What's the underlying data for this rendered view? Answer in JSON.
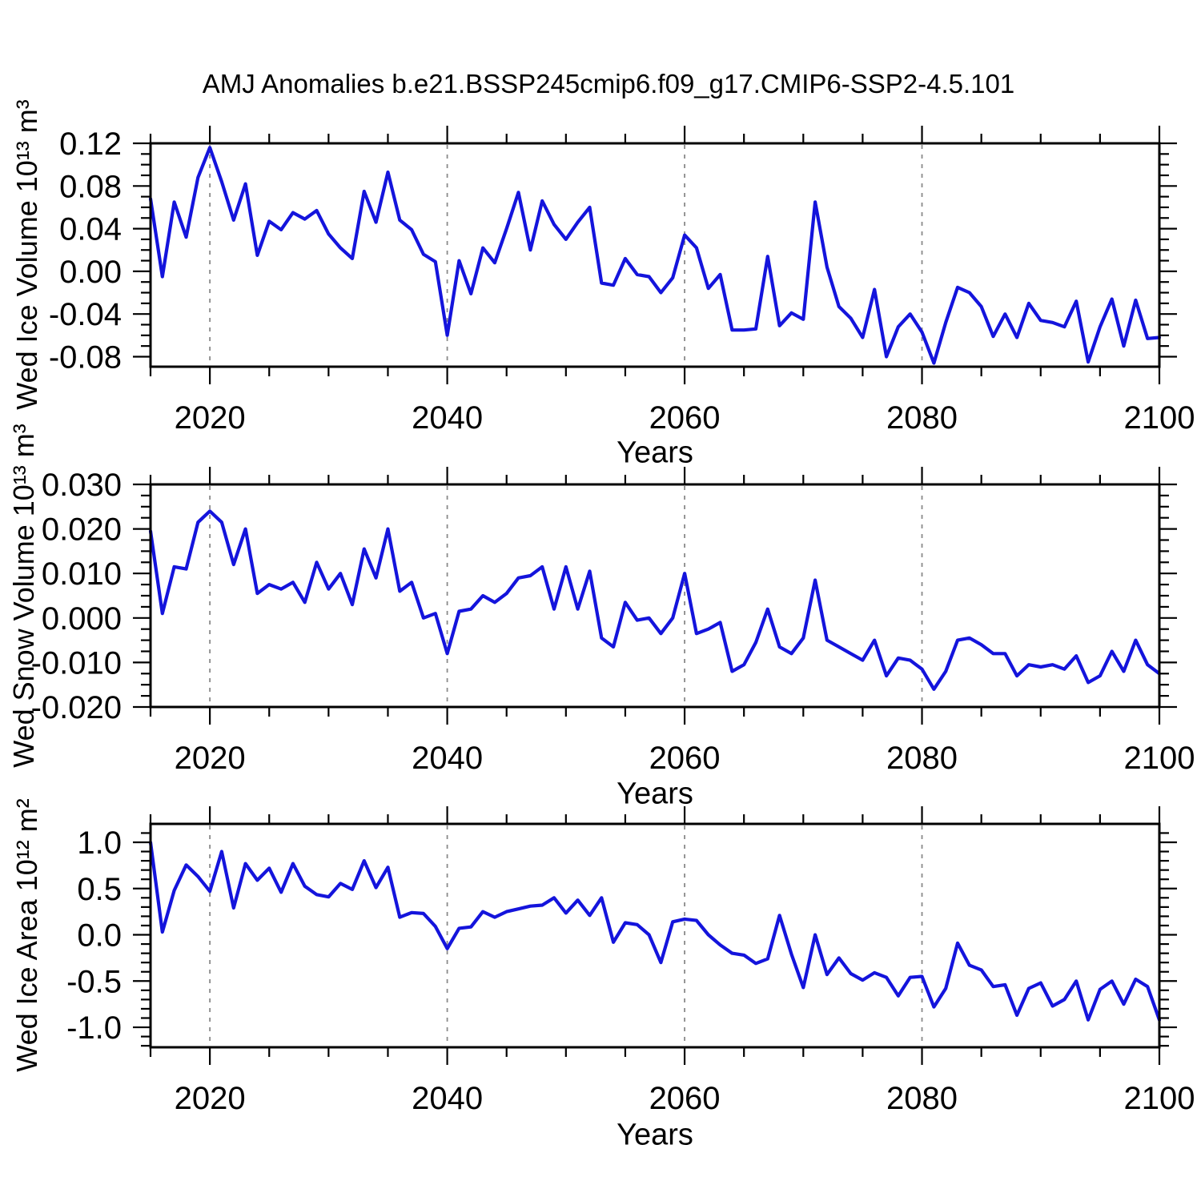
{
  "title": "AMJ Anomalies b.e21.BSSP245cmip6.f09_g17.CMIP6-SSP2-4.5.101",
  "line_color": "#1414dc",
  "grid_color": "#8a8a8a",
  "chart_data": [
    {
      "type": "line",
      "name": "wed-ice-volume-anomaly",
      "ylabel": "Wed Ice Volume 10¹³ m³",
      "xlabel": "Years",
      "years": {
        "start": 2015,
        "end": 2100,
        "step": 1
      },
      "values": [
        0.068,
        -0.005,
        0.065,
        0.032,
        0.088,
        0.116,
        0.084,
        0.048,
        0.082,
        0.015,
        0.047,
        0.039,
        0.055,
        0.049,
        0.057,
        0.035,
        0.022,
        0.012,
        0.075,
        0.046,
        0.093,
        0.048,
        0.039,
        0.016,
        0.009,
        -0.06,
        0.01,
        -0.021,
        0.022,
        0.008,
        0.04,
        0.074,
        0.02,
        0.066,
        0.044,
        0.03,
        0.046,
        0.06,
        -0.011,
        -0.013,
        0.012,
        -0.003,
        -0.005,
        -0.02,
        -0.006,
        0.034,
        0.022,
        -0.016,
        -0.003,
        -0.055,
        -0.055,
        -0.054,
        0.014,
        -0.051,
        -0.039,
        -0.045,
        0.065,
        0.004,
        -0.033,
        -0.044,
        -0.062,
        -0.017,
        -0.08,
        -0.052,
        -0.04,
        -0.057,
        -0.086,
        -0.048,
        -0.015,
        -0.02,
        -0.033,
        -0.061,
        -0.04,
        -0.062,
        -0.03,
        -0.046,
        -0.048,
        -0.052,
        -0.028,
        -0.085,
        -0.052,
        -0.026,
        -0.07,
        -0.027,
        -0.063,
        -0.062
      ],
      "xlim": [
        2015,
        2100
      ],
      "ylim": [
        -0.0894,
        0.12
      ],
      "xticks": [
        2020,
        2040,
        2060,
        2080,
        2100
      ],
      "xtick_labels": [
        "2020",
        "2040",
        "2060",
        "2080",
        "2100"
      ],
      "x_minor_step": 5,
      "yticks": [
        0.12,
        0.08,
        0.04,
        0.0,
        -0.04,
        -0.08
      ],
      "ytick_labels": [
        "0.12",
        "0.08",
        "0.04",
        "0.00",
        "-0.04",
        "-0.08"
      ],
      "y_minor_step": 0.01,
      "grid_years": [
        2020,
        2040,
        2060,
        2080
      ],
      "legend": "none"
    },
    {
      "type": "line",
      "name": "wed-snow-volume-anomaly",
      "ylabel": "Wed Snow Volume 10¹³ m³",
      "xlabel": "Years",
      "years": {
        "start": 2015,
        "end": 2100,
        "step": 1
      },
      "values": [
        0.0195,
        0.001,
        0.0115,
        0.011,
        0.0215,
        0.024,
        0.0215,
        0.012,
        0.02,
        0.0055,
        0.0075,
        0.0065,
        0.008,
        0.0035,
        0.0125,
        0.0065,
        0.01,
        0.003,
        0.0155,
        0.009,
        0.02,
        0.006,
        0.008,
        0.0,
        0.001,
        -0.008,
        0.0015,
        0.002,
        0.005,
        0.0035,
        0.0055,
        0.009,
        0.0095,
        0.0115,
        0.002,
        0.0115,
        0.002,
        0.0105,
        -0.0045,
        -0.0065,
        0.0035,
        -0.0005,
        0.0,
        -0.0035,
        0.0,
        0.01,
        -0.0035,
        -0.0025,
        -0.001,
        -0.012,
        -0.0105,
        -0.0055,
        0.002,
        -0.0065,
        -0.008,
        -0.0045,
        0.0085,
        -0.005,
        -0.0065,
        -0.008,
        -0.0095,
        -0.005,
        -0.013,
        -0.009,
        -0.0095,
        -0.0115,
        -0.016,
        -0.012,
        -0.005,
        -0.0045,
        -0.006,
        -0.008,
        -0.008,
        -0.013,
        -0.0105,
        -0.011,
        -0.0105,
        -0.0115,
        -0.0085,
        -0.0145,
        -0.013,
        -0.0075,
        -0.012,
        -0.005,
        -0.0105,
        -0.0125
      ],
      "xlim": [
        2015,
        2100
      ],
      "ylim": [
        -0.02,
        0.03
      ],
      "xticks": [
        2020,
        2040,
        2060,
        2080,
        2100
      ],
      "xtick_labels": [
        "2020",
        "2040",
        "2060",
        "2080",
        "2100"
      ],
      "x_minor_step": 5,
      "yticks": [
        0.03,
        0.02,
        0.01,
        0.0,
        -0.01,
        -0.02
      ],
      "ytick_labels": [
        "0.030",
        "0.020",
        "0.010",
        "0.000",
        "-0.010",
        "-0.020"
      ],
      "y_minor_step": 0.0025,
      "grid_years": [
        2020,
        2040,
        2060,
        2080
      ],
      "legend": "none"
    },
    {
      "type": "line",
      "name": "wed-ice-area-anomaly",
      "ylabel": "Wed Ice Area 10¹² m²",
      "xlabel": "Years",
      "years": {
        "start": 2015,
        "end": 2100,
        "step": 1
      },
      "values": [
        1.0,
        0.03,
        0.48,
        0.755,
        0.63,
        0.47,
        0.9,
        0.29,
        0.77,
        0.59,
        0.72,
        0.46,
        0.77,
        0.525,
        0.435,
        0.41,
        0.555,
        0.49,
        0.8,
        0.51,
        0.73,
        0.19,
        0.24,
        0.23,
        0.09,
        -0.15,
        0.07,
        0.085,
        0.25,
        0.19,
        0.25,
        0.28,
        0.31,
        0.32,
        0.4,
        0.235,
        0.375,
        0.21,
        0.4,
        -0.08,
        0.13,
        0.11,
        0.0,
        -0.3,
        0.14,
        0.17,
        0.155,
        0.0,
        -0.11,
        -0.2,
        -0.22,
        -0.31,
        -0.26,
        0.21,
        -0.21,
        -0.57,
        0.0,
        -0.43,
        -0.25,
        -0.42,
        -0.49,
        -0.41,
        -0.46,
        -0.66,
        -0.46,
        -0.45,
        -0.78,
        -0.58,
        -0.09,
        -0.33,
        -0.38,
        -0.56,
        -0.54,
        -0.87,
        -0.58,
        -0.52,
        -0.77,
        -0.7,
        -0.5,
        -0.92,
        -0.59,
        -0.5,
        -0.75,
        -0.48,
        -0.56,
        -0.92
      ],
      "xlim": [
        2015,
        2100
      ],
      "ylim": [
        -1.216,
        1.199
      ],
      "xticks": [
        2020,
        2040,
        2060,
        2080,
        2100
      ],
      "xtick_labels": [
        "2020",
        "2040",
        "2060",
        "2080",
        "2100"
      ],
      "x_minor_step": 5,
      "yticks": [
        1.0,
        0.5,
        0.0,
        -0.5,
        -1.0
      ],
      "ytick_labels": [
        "1.0",
        "0.5",
        "0.0",
        "-0.5",
        "-1.0"
      ],
      "y_minor_step": 0.1,
      "grid_years": [
        2020,
        2040,
        2060,
        2080
      ],
      "legend": "none"
    }
  ]
}
